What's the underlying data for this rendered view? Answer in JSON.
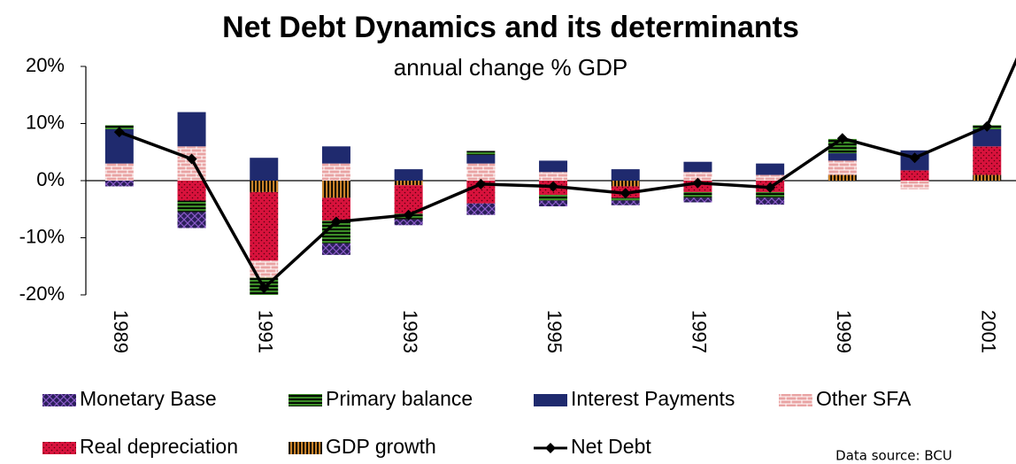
{
  "chart_data": {
    "type": "stacked-bar-line",
    "title": "Net Debt Dynamics and its determinants",
    "subtitle": "annual change % GDP",
    "source": "Data source: BCU",
    "categories": [
      "1989",
      null,
      "1991",
      null,
      "1993",
      null,
      "1995",
      null,
      "1997",
      null,
      "1999",
      null,
      "2001",
      null
    ],
    "ylim": [
      -20,
      20
    ],
    "yticks": [
      {
        "value": -20,
        "label": "-20%"
      },
      {
        "value": -10,
        "label": "-10%"
      },
      {
        "value": 0,
        "label": "0%"
      },
      {
        "value": 10,
        "label": "10%"
      },
      {
        "value": 20,
        "label": "20%"
      }
    ],
    "series": [
      {
        "name": "Monetary Base",
        "color": "#2a1f5a",
        "values": [
          -1,
          -2.8,
          0,
          -2,
          -1,
          -2,
          -1,
          -0.8,
          -0.8,
          -1.2,
          0,
          0,
          0,
          null
        ]
      },
      {
        "name": "Primary balance",
        "color": "#3c8c28",
        "values": [
          0.7,
          -2,
          -3,
          -4,
          -1,
          0.7,
          -1,
          -0.5,
          -1,
          -1,
          2.5,
          0,
          0.7,
          null
        ]
      },
      {
        "name": "Interest Payments",
        "color": "#1f2a6e",
        "values": [
          6,
          6,
          4,
          3,
          2,
          1.5,
          2,
          2,
          1.8,
          2,
          1.3,
          3.5,
          3,
          null
        ]
      },
      {
        "name": "Other SFA",
        "color": "#e9a3a3",
        "values": [
          3,
          6,
          -3,
          3,
          0,
          3,
          1.5,
          0,
          1.5,
          1,
          2.5,
          -1.5,
          0,
          null
        ]
      },
      {
        "name": "Real depreciation",
        "color": "#d8123c",
        "values": [
          0,
          -3.5,
          -12,
          -4,
          -5,
          -4,
          -2.5,
          -2,
          -2,
          -2,
          0,
          1.8,
          5,
          null
        ]
      },
      {
        "name": "GDP growth",
        "color": "#c8822a",
        "values": [
          0,
          0,
          -2,
          -3,
          -0.8,
          0,
          0,
          -1,
          0,
          0,
          1,
          0,
          1,
          null
        ]
      }
    ],
    "line": {
      "name": "Net Debt",
      "color": "#000000",
      "values": [
        8.5,
        3.8,
        -18.8,
        -7.2,
        -6,
        -0.6,
        -1,
        -2.2,
        -0.4,
        -1.2,
        7.4,
        4,
        9.5,
        38
      ]
    }
  }
}
